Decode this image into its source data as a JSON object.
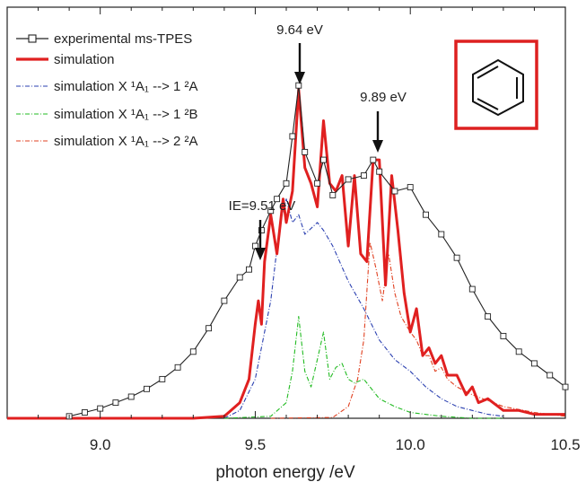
{
  "chart_data": {
    "type": "line",
    "xlabel": "photon energy /eV",
    "ylabel": "",
    "xlim": [
      8.7,
      10.5
    ],
    "ylim": [
      0,
      1.05
    ],
    "xticks": [
      "9.0",
      "9.5",
      "10.0",
      "10.5"
    ],
    "grid": false,
    "legend_position": "top-left",
    "colors": {
      "experimental": "#222222",
      "simulation": "#e02020",
      "sim_1A": "#2a3fb0",
      "sim_1B": "#22bb22",
      "sim_2A": "#e04020",
      "molecule_frame": "#dd2020"
    },
    "legend": [
      {
        "label": "experimental ms-TPES",
        "style": "line-square"
      },
      {
        "label": "simulation",
        "style": "thick-red"
      },
      {
        "label": "simulation X ¹A₁ --> 1 ²A",
        "style": "dashdot-blue"
      },
      {
        "label": "simulation X ¹A₁ --> 1 ²B",
        "style": "dashdot-green"
      },
      {
        "label": "simulation X ¹A₁ --> 2 ²A",
        "style": "dashdot-red"
      }
    ],
    "annotations": [
      {
        "text": "IE=9.51 eV",
        "x": 9.51,
        "y": 0.47
      },
      {
        "text": "9.64 eV",
        "x": 9.64,
        "y": 0.93
      },
      {
        "text": "9.89 eV",
        "x": 9.89,
        "y": 0.68
      }
    ],
    "series": [
      {
        "name": "experimental ms-TPES",
        "x": [
          8.9,
          8.95,
          9.0,
          9.05,
          9.1,
          9.15,
          9.2,
          9.25,
          9.3,
          9.35,
          9.4,
          9.45,
          9.48,
          9.5,
          9.52,
          9.55,
          9.57,
          9.6,
          9.62,
          9.64,
          9.66,
          9.7,
          9.72,
          9.75,
          9.8,
          9.85,
          9.88,
          9.9,
          9.95,
          10.0,
          10.05,
          10.1,
          10.15,
          10.2,
          10.25,
          10.3,
          10.35,
          10.4,
          10.45,
          10.5
        ],
        "y": [
          0.005,
          0.015,
          0.025,
          0.04,
          0.055,
          0.075,
          0.1,
          0.13,
          0.17,
          0.23,
          0.3,
          0.36,
          0.38,
          0.44,
          0.48,
          0.53,
          0.56,
          0.6,
          0.72,
          0.85,
          0.68,
          0.6,
          0.66,
          0.57,
          0.61,
          0.62,
          0.66,
          0.63,
          0.58,
          0.59,
          0.52,
          0.47,
          0.41,
          0.33,
          0.26,
          0.21,
          0.17,
          0.14,
          0.11,
          0.08
        ]
      },
      {
        "name": "simulation",
        "x": [
          8.7,
          9.3,
          9.4,
          9.45,
          9.48,
          9.5,
          9.51,
          9.52,
          9.53,
          9.55,
          9.57,
          9.59,
          9.6,
          9.62,
          9.64,
          9.66,
          9.68,
          9.7,
          9.72,
          9.74,
          9.76,
          9.78,
          9.8,
          9.82,
          9.84,
          9.86,
          9.88,
          9.9,
          9.92,
          9.94,
          9.96,
          9.98,
          10.0,
          10.02,
          10.04,
          10.06,
          10.08,
          10.1,
          10.12,
          10.15,
          10.18,
          10.2,
          10.22,
          10.25,
          10.3,
          10.35,
          10.4,
          10.45,
          10.5
        ],
        "y": [
          0.0,
          0.0,
          0.005,
          0.04,
          0.1,
          0.24,
          0.3,
          0.24,
          0.4,
          0.52,
          0.42,
          0.56,
          0.5,
          0.58,
          0.84,
          0.64,
          0.6,
          0.54,
          0.76,
          0.6,
          0.58,
          0.62,
          0.44,
          0.62,
          0.42,
          0.4,
          0.66,
          0.66,
          0.34,
          0.62,
          0.48,
          0.32,
          0.22,
          0.28,
          0.16,
          0.18,
          0.14,
          0.16,
          0.11,
          0.11,
          0.06,
          0.08,
          0.04,
          0.05,
          0.02,
          0.02,
          0.01,
          0.01,
          0.01
        ]
      },
      {
        "name": "simulation X ¹A₁ --> 1 ²A",
        "x": [
          9.4,
          9.45,
          9.5,
          9.55,
          9.58,
          9.6,
          9.62,
          9.64,
          9.66,
          9.7,
          9.72,
          9.75,
          9.8,
          9.85,
          9.9,
          9.95,
          10.0,
          10.05,
          10.1,
          10.15,
          10.2,
          10.25,
          10.3
        ],
        "y": [
          0.0,
          0.02,
          0.1,
          0.3,
          0.5,
          0.56,
          0.5,
          0.52,
          0.47,
          0.5,
          0.48,
          0.44,
          0.35,
          0.28,
          0.2,
          0.15,
          0.12,
          0.08,
          0.05,
          0.03,
          0.02,
          0.01,
          0.005
        ]
      },
      {
        "name": "simulation X ¹A₁ --> 1 ²B",
        "x": [
          9.4,
          9.55,
          9.6,
          9.62,
          9.64,
          9.66,
          9.68,
          9.7,
          9.72,
          9.74,
          9.76,
          9.78,
          9.8,
          9.82,
          9.85,
          9.9,
          9.95,
          10.0,
          10.1,
          10.2,
          10.3
        ],
        "y": [
          0.0,
          0.005,
          0.04,
          0.12,
          0.26,
          0.12,
          0.08,
          0.15,
          0.22,
          0.1,
          0.13,
          0.14,
          0.1,
          0.09,
          0.1,
          0.05,
          0.03,
          0.015,
          0.005,
          0.0,
          0.0
        ]
      },
      {
        "name": "simulation X ¹A₁ --> 2 ²A",
        "x": [
          9.55,
          9.75,
          9.8,
          9.83,
          9.85,
          9.87,
          9.89,
          9.91,
          9.93,
          9.95,
          9.97,
          10.0,
          10.02,
          10.04,
          10.06,
          10.08,
          10.1,
          10.12,
          10.15,
          10.2,
          10.3,
          10.4,
          10.5
        ],
        "y": [
          0.0,
          0.002,
          0.03,
          0.1,
          0.2,
          0.45,
          0.38,
          0.3,
          0.42,
          0.32,
          0.26,
          0.22,
          0.2,
          0.16,
          0.16,
          0.12,
          0.13,
          0.1,
          0.08,
          0.06,
          0.03,
          0.015,
          0.005
        ]
      }
    ]
  }
}
